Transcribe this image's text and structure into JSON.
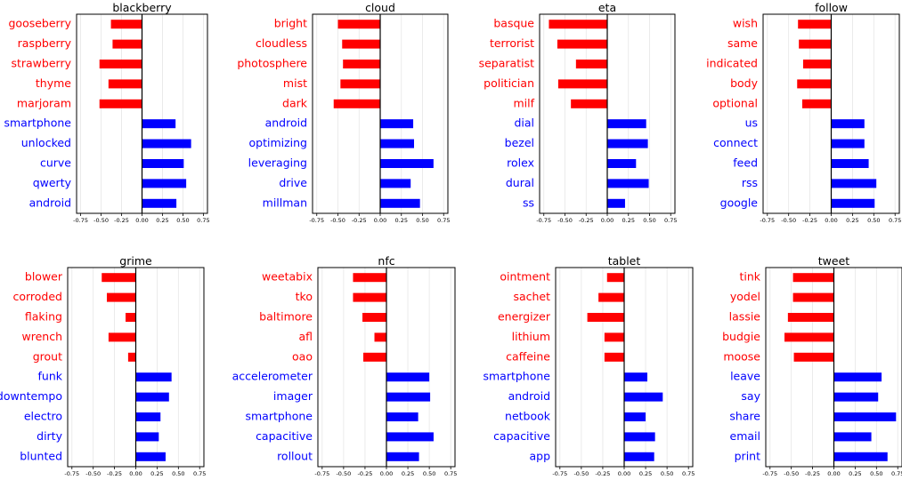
{
  "colors": {
    "negative": "#ff0000",
    "positive": "#0000ff",
    "axis": "#000000",
    "grid": "#e6e6e6"
  },
  "chart_data": [
    {
      "type": "bar",
      "title": "blackberry",
      "xlim": [
        -0.8,
        0.8
      ],
      "xticks": [
        -0.75,
        -0.5,
        -0.25,
        0.0,
        0.25,
        0.5,
        0.75
      ],
      "xtick_labels": [
        "-0.75",
        "-0.50",
        "-0.25",
        "0.00",
        "0.25",
        "0.50",
        "0.75"
      ],
      "categories": [
        "gooseberry",
        "raspberry",
        "strawberry",
        "thyme",
        "marjoram",
        "smartphone",
        "unlocked",
        "curve",
        "qwerty",
        "android"
      ],
      "values": [
        -0.38,
        -0.36,
        -0.52,
        -0.41,
        -0.52,
        0.41,
        0.6,
        0.51,
        0.54,
        0.42
      ]
    },
    {
      "type": "bar",
      "title": "cloud",
      "xlim": [
        -0.8,
        0.8
      ],
      "xticks": [
        -0.75,
        -0.5,
        -0.25,
        0.0,
        0.25,
        0.5,
        0.75
      ],
      "xtick_labels": [
        "-0.75",
        "-0.50",
        "-0.25",
        "0.00",
        "0.25",
        "0.50",
        "0.75"
      ],
      "categories": [
        "bright",
        "cloudless",
        "photosphere",
        "mist",
        "dark",
        "android",
        "optimizing",
        "leveraging",
        "drive",
        "millman"
      ],
      "values": [
        -0.5,
        -0.45,
        -0.44,
        -0.47,
        -0.55,
        0.39,
        0.4,
        0.63,
        0.36,
        0.47
      ]
    },
    {
      "type": "bar",
      "title": "eta",
      "xlim": [
        -0.8,
        0.8
      ],
      "xticks": [
        -0.75,
        -0.5,
        -0.25,
        0.0,
        0.25,
        0.5,
        0.75
      ],
      "xtick_labels": [
        "-0.75",
        "-0.50",
        "-0.25",
        "0.00",
        "0.25",
        "0.50",
        "0.75"
      ],
      "categories": [
        "basque",
        "terrorist",
        "separatist",
        "politician",
        "milf",
        "dial",
        "bezel",
        "rolex",
        "dural",
        "ss"
      ],
      "values": [
        -0.69,
        -0.59,
        -0.37,
        -0.58,
        -0.43,
        0.46,
        0.48,
        0.34,
        0.49,
        0.21
      ]
    },
    {
      "type": "bar",
      "title": "follow",
      "xlim": [
        -0.8,
        0.8
      ],
      "xticks": [
        -0.75,
        -0.5,
        -0.25,
        0.0,
        0.25,
        0.5,
        0.75
      ],
      "xtick_labels": [
        "-0.75",
        "-0.50",
        "-0.25",
        "0.00",
        "0.25",
        "0.50",
        "0.75"
      ],
      "categories": [
        "wish",
        "same",
        "indicated",
        "body",
        "optional",
        "us",
        "connect",
        "feed",
        "rss",
        "google"
      ],
      "values": [
        -0.39,
        -0.38,
        -0.33,
        -0.4,
        -0.34,
        0.39,
        0.39,
        0.44,
        0.53,
        0.51
      ]
    },
    {
      "type": "bar",
      "title": "grime",
      "xlim": [
        -0.8,
        0.8
      ],
      "xticks": [
        -0.75,
        -0.5,
        -0.25,
        0.0,
        0.25,
        0.5,
        0.75
      ],
      "xtick_labels": [
        "-0.75",
        "-0.50",
        "-0.25",
        "0.00",
        "0.25",
        "0.50",
        "0.75"
      ],
      "categories": [
        "blower",
        "corroded",
        "flaking",
        "wrench",
        "grout",
        "funk",
        "downtempo",
        "electro",
        "dirty",
        "blunted"
      ],
      "values": [
        -0.4,
        -0.34,
        -0.12,
        -0.32,
        -0.09,
        0.42,
        0.39,
        0.29,
        0.27,
        0.35
      ]
    },
    {
      "type": "bar",
      "title": "nfc",
      "xlim": [
        -0.8,
        0.8
      ],
      "xticks": [
        -0.75,
        -0.5,
        -0.25,
        0.0,
        0.25,
        0.5,
        0.75
      ],
      "xtick_labels": [
        "-0.75",
        "-0.50",
        "-0.25",
        "0.00",
        "0.25",
        "0.50",
        "0.75"
      ],
      "categories": [
        "weetabix",
        "tko",
        "baltimore",
        "afl",
        "oao",
        "accelerometer",
        "imager",
        "smartphone",
        "capacitive",
        "rollout"
      ],
      "values": [
        -0.39,
        -0.39,
        -0.28,
        -0.14,
        -0.27,
        0.5,
        0.51,
        0.37,
        0.55,
        0.38
      ]
    },
    {
      "type": "bar",
      "title": "tablet",
      "xlim": [
        -0.8,
        0.8
      ],
      "xticks": [
        -0.75,
        -0.5,
        -0.25,
        0.0,
        0.25,
        0.5,
        0.75
      ],
      "xtick_labels": [
        "-0.75",
        "-0.50",
        "-0.25",
        "0.00",
        "0.25",
        "0.50",
        "0.75"
      ],
      "categories": [
        "ointment",
        "sachet",
        "energizer",
        "lithium",
        "caffeine",
        "smartphone",
        "android",
        "netbook",
        "capacitive",
        "app"
      ],
      "values": [
        -0.2,
        -0.3,
        -0.43,
        -0.23,
        -0.23,
        0.27,
        0.45,
        0.25,
        0.36,
        0.35
      ]
    },
    {
      "type": "bar",
      "title": "tweet",
      "xlim": [
        -0.8,
        0.8
      ],
      "xticks": [
        -0.75,
        -0.5,
        -0.25,
        0.0,
        0.25,
        0.5,
        0.75
      ],
      "xtick_labels": [
        "-0.75",
        "-0.50",
        "-0.25",
        "0.00",
        "0.25",
        "0.50",
        "0.75"
      ],
      "categories": [
        "tink",
        "yodel",
        "lassie",
        "budgie",
        "moose",
        "leave",
        "say",
        "share",
        "email",
        "print"
      ],
      "values": [
        -0.48,
        -0.48,
        -0.54,
        -0.58,
        -0.47,
        0.56,
        0.52,
        0.73,
        0.44,
        0.63
      ]
    }
  ]
}
